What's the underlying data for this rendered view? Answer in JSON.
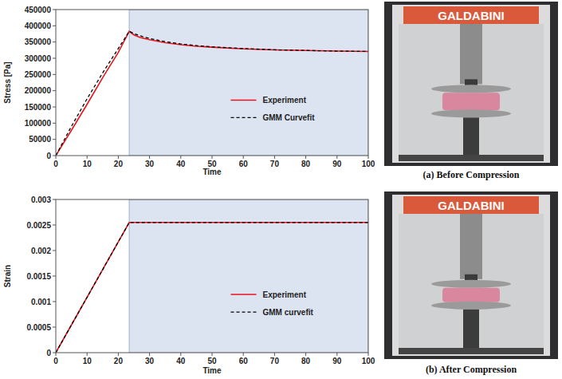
{
  "chart_data": [
    {
      "type": "line",
      "ylabel": "Stress [Pa]",
      "xlabel": "Time",
      "x": [
        0,
        5,
        10,
        15,
        20,
        23.5,
        25,
        27,
        30,
        35,
        40,
        45,
        50,
        60,
        70,
        80,
        90,
        100
      ],
      "series": [
        {
          "name": "Experiment",
          "color": "#e8141c",
          "line_style": "solid",
          "values": [
            0,
            78000,
            158000,
            240000,
            318000,
            383000,
            372000,
            364000,
            357000,
            348000,
            342000,
            337000,
            334000,
            329000,
            326000,
            324000,
            322000,
            321000
          ]
        },
        {
          "name": "GMM Curvefit",
          "color": "#000000",
          "line_style": "dashed",
          "values": [
            0,
            90000,
            175000,
            255000,
            330000,
            383000,
            376000,
            369000,
            361000,
            351000,
            344000,
            339000,
            335000,
            330000,
            326000,
            324000,
            322000,
            321000
          ]
        }
      ],
      "xlim": [
        0,
        100
      ],
      "xticks": [
        0,
        10,
        20,
        30,
        40,
        50,
        60,
        70,
        80,
        90,
        100
      ],
      "ylim": [
        0,
        450000
      ],
      "yticks": [
        0,
        50000,
        100000,
        150000,
        200000,
        250000,
        300000,
        350000,
        400000,
        450000
      ],
      "shaded_span": [
        23.5,
        100
      ],
      "grid": false,
      "legend": "right"
    },
    {
      "type": "line",
      "ylabel": "Strain",
      "xlabel": "Time",
      "x": [
        0,
        5,
        10,
        15,
        20,
        23.5,
        25,
        27,
        30,
        35,
        40,
        45,
        50,
        60,
        70,
        80,
        90,
        100
      ],
      "series": [
        {
          "name": "Experiment",
          "color": "#e8141c",
          "line_style": "solid",
          "values": [
            0,
            0.000543,
            0.001085,
            0.001628,
            0.00217,
            0.00255,
            0.00255,
            0.00255,
            0.00255,
            0.00255,
            0.00255,
            0.00255,
            0.00255,
            0.00255,
            0.00255,
            0.00255,
            0.00255,
            0.00255
          ]
        },
        {
          "name": "GMM curvefit",
          "color": "#000000",
          "line_style": "dashed",
          "values": [
            0,
            0.000543,
            0.001085,
            0.001628,
            0.00217,
            0.00255,
            0.00255,
            0.00255,
            0.00255,
            0.00255,
            0.00255,
            0.00255,
            0.00255,
            0.00255,
            0.00255,
            0.00255,
            0.00255,
            0.00255
          ]
        }
      ],
      "xlim": [
        0,
        100
      ],
      "xticks": [
        0,
        10,
        20,
        30,
        40,
        50,
        60,
        70,
        80,
        90,
        100
      ],
      "ylim": [
        0,
        0.003
      ],
      "yticks": [
        0,
        0.0005,
        0.001,
        0.0015,
        0.002,
        0.0025,
        0.003
      ],
      "shaded_span": [
        23.5,
        100
      ],
      "grid": false,
      "legend": "right"
    }
  ],
  "photos": [
    {
      "banner": "GALDABINI",
      "caption": "(a) Before Compression"
    },
    {
      "banner": "GALDABINI",
      "caption": "(b) After Compression"
    }
  ]
}
